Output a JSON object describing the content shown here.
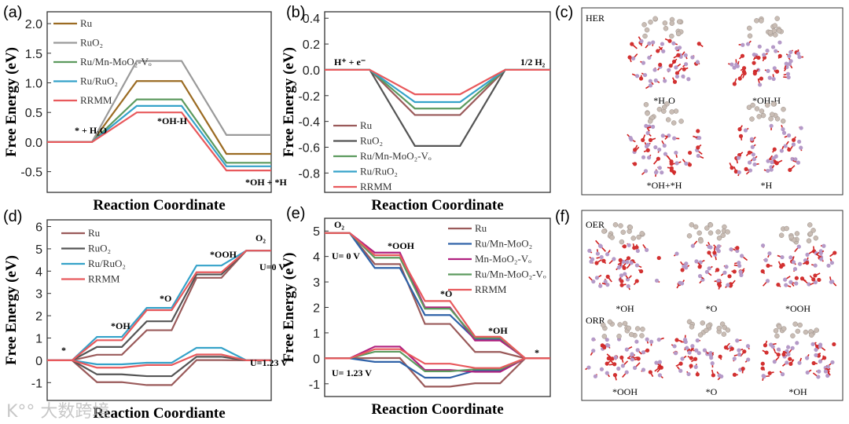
{
  "watermark": "K°° 大数跨境",
  "chart_data": [
    {
      "panel": "(a)",
      "type": "line",
      "subtype": "energy-diagram",
      "ylabel": "Free Energy (eV)",
      "xlabel": "Reaction Coordinate",
      "ylim": [
        -0.85,
        2.2
      ],
      "yticks": [
        -0.5,
        0.0,
        0.5,
        1.0,
        1.5,
        2.0
      ],
      "tickfmt": 1,
      "steps": [
        "* + H₂O",
        "*OH-H",
        "*OH + *H"
      ],
      "legend_pos": "top-left",
      "series": [
        {
          "name": "Ru",
          "color": "#9b6b22",
          "values": [
            0,
            1.03,
            -0.2
          ]
        },
        {
          "name": "RuO₂",
          "color": "#9a9a9a",
          "values": [
            0,
            1.37,
            0.12
          ]
        },
        {
          "name": "Ru/Mn-MoO₂-Vₒ",
          "color": "#5c9a5e",
          "values": [
            0,
            0.72,
            -0.35
          ]
        },
        {
          "name": "Ru/RuO₂",
          "color": "#35a2c9",
          "values": [
            0,
            0.61,
            -0.41
          ]
        },
        {
          "name": "RRMM",
          "color": "#e8595c",
          "values": [
            0,
            0.5,
            -0.48
          ]
        }
      ]
    },
    {
      "panel": "(b)",
      "type": "line",
      "subtype": "energy-diagram",
      "ylabel": "Free Energy (eV)",
      "xlabel": "Reaction Coordinate",
      "ylim": [
        -0.95,
        0.45
      ],
      "yticks": [
        -0.8,
        -0.6,
        -0.4,
        -0.2,
        0.0,
        0.2,
        0.4
      ],
      "tickfmt": 1,
      "steps": [
        "H⁺ + e⁻",
        "",
        "1/2 H₂"
      ],
      "legend_pos": "bottom-left",
      "series": [
        {
          "name": "Ru",
          "color": "#9a5a5a",
          "values": [
            0,
            -0.35,
            0
          ]
        },
        {
          "name": "RuO₂",
          "color": "#555555",
          "values": [
            0,
            -0.59,
            0
          ]
        },
        {
          "name": "Ru/Mn-MoO₂-Vₒ",
          "color": "#5c9a5e",
          "values": [
            0,
            -0.3,
            0
          ]
        },
        {
          "name": "Ru/RuO₂",
          "color": "#35a2c9",
          "values": [
            0,
            -0.25,
            0
          ]
        },
        {
          "name": "RRMM",
          "color": "#e8595c",
          "values": [
            0,
            -0.19,
            0
          ]
        }
      ]
    },
    {
      "panel": "(d)",
      "type": "line",
      "subtype": "energy-diagram",
      "ylabel": "Free Energy (eV)",
      "xlabel": "Reaction Coordiante",
      "ylim": [
        -1.8,
        6.3
      ],
      "yticks": [
        -1,
        0,
        1,
        2,
        3,
        4,
        5,
        6
      ],
      "tickfmt": 0,
      "steps": [
        "*",
        "*OH",
        "*O",
        "*OOH",
        "O₂"
      ],
      "legend_pos": "top-left",
      "potentials": [
        "U=0 V",
        "U=1.23 V"
      ],
      "series": [
        {
          "name": "Ru",
          "color": "#9a5a5a",
          "values": [
            0,
            0.25,
            1.35,
            3.7,
            4.92
          ],
          "values_u123": [
            0,
            -0.98,
            -1.11,
            0.01,
            0
          ]
        },
        {
          "name": "RuO₂",
          "color": "#555555",
          "values": [
            0,
            0.6,
            1.75,
            3.85,
            4.92
          ],
          "values_u123": [
            0,
            -0.63,
            -0.71,
            0.16,
            0
          ]
        },
        {
          "name": "Ru/RuO₂",
          "color": "#35a2c9",
          "values": [
            0,
            1.05,
            2.35,
            4.25,
            4.92
          ],
          "values_u123": [
            0,
            -0.18,
            -0.11,
            0.56,
            0
          ]
        },
        {
          "name": "RRMM",
          "color": "#e8595c",
          "values": [
            0,
            0.9,
            2.25,
            3.95,
            4.92
          ],
          "values_u123": [
            0,
            -0.33,
            -0.21,
            0.26,
            0
          ]
        }
      ]
    },
    {
      "panel": "(e)",
      "type": "line",
      "subtype": "energy-diagram",
      "ylabel": "Free Energy (eV)",
      "xlabel": "Reaction Coordinate",
      "ylim": [
        -1.5,
        5.5
      ],
      "yticks": [
        -1,
        0,
        1,
        2,
        3,
        4,
        5
      ],
      "tickfmt": 0,
      "steps": [
        "O₂",
        "*OOH",
        "*O",
        "*OH",
        "*"
      ],
      "legend_pos": "top-right",
      "potentials": [
        "U= 0 V",
        "U= 1.23 V"
      ],
      "series": [
        {
          "name": "Ru",
          "color": "#9a5a5a",
          "values": [
            4.92,
            3.7,
            1.35,
            0.25,
            0
          ],
          "values_u123": [
            0,
            0.01,
            -1.11,
            -0.98,
            0
          ]
        },
        {
          "name": "Ru/Mn-MoO₂",
          "color": "#2f62a8",
          "values": [
            4.92,
            3.55,
            1.7,
            0.75,
            0
          ],
          "values_u123": [
            0,
            -0.14,
            -0.76,
            -0.48,
            0
          ]
        },
        {
          "name": "Mn-MoO₂-Vₒ",
          "color": "#b0207f",
          "values": [
            4.92,
            4.15,
            2.0,
            0.7,
            0
          ],
          "values_u123": [
            0,
            0.46,
            -0.46,
            -0.53,
            0
          ]
        },
        {
          "name": "Ru/Mn-MoO₂-Vₒ",
          "color": "#5c9a5e",
          "values": [
            4.92,
            3.95,
            1.95,
            0.8,
            0
          ],
          "values_u123": [
            0,
            0.26,
            -0.51,
            -0.43,
            0
          ]
        },
        {
          "name": "RRMM",
          "color": "#e8595c",
          "values": [
            4.92,
            4.05,
            2.25,
            0.85,
            0
          ],
          "values_u123": [
            0,
            0.36,
            -0.21,
            -0.38,
            0
          ]
        }
      ]
    }
  ],
  "panel_c": {
    "label": "(c)",
    "title": "HER",
    "structures": [
      "*H₂O",
      "*OH-H",
      "*OH+*H",
      "*H"
    ]
  },
  "panel_f": {
    "label": "(f)",
    "title_top": "OER",
    "title_bottom": "ORR",
    "structures_top": [
      "*OH",
      "*O",
      "*OOH"
    ],
    "structures_bottom": [
      "*OOH",
      "*O",
      "*OH"
    ]
  }
}
